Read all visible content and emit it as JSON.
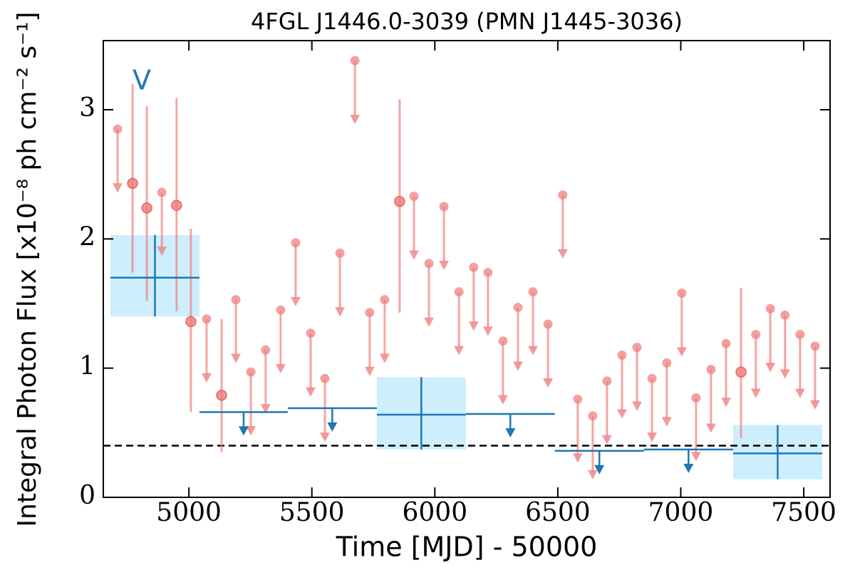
{
  "chart_data": {
    "type": "lightcurve",
    "title": "4FGL J1446.0-3039 (PMN J1445-3036)",
    "x_label": "Time [MJD] - 50000",
    "y_label": "Integral Photon Flux [x10⁻⁸ ph cm⁻² s⁻¹]",
    "annotation": "V",
    "xlim": [
      4652,
      7607
    ],
    "ylim": [
      0,
      3.535
    ],
    "xticks": [
      5000,
      5500,
      6000,
      6500,
      7000,
      7500
    ],
    "yticks": [
      0,
      1,
      2,
      3
    ],
    "reference_line": 0.4,
    "monthly": {
      "color": "#f08080",
      "edge_color": "#d9534f",
      "x": [
        4710,
        4771,
        4829,
        4890,
        4950,
        5008,
        5072,
        5133,
        5191,
        5252,
        5312,
        5373,
        5434,
        5495,
        5553,
        5614,
        5675,
        5735,
        5796,
        5857,
        5915,
        5976,
        6037,
        6098,
        6158,
        6216,
        6277,
        6338,
        6399,
        6460,
        6520,
        6581,
        6642,
        6700,
        6761,
        6822,
        6883,
        6943,
        7004,
        7062,
        7123,
        7184,
        7245,
        7305,
        7364,
        7424,
        7485,
        7546
      ],
      "values": [
        2.85,
        2.43,
        2.24,
        2.36,
        2.26,
        1.36,
        1.38,
        0.79,
        1.53,
        0.97,
        1.14,
        1.45,
        1.97,
        1.27,
        0.92,
        1.89,
        3.38,
        1.43,
        1.53,
        2.29,
        2.33,
        1.81,
        2.25,
        1.59,
        1.78,
        1.74,
        1.21,
        1.47,
        1.59,
        1.34,
        2.34,
        0.76,
        0.63,
        0.9,
        1.1,
        1.16,
        0.92,
        1.04,
        1.58,
        0.77,
        0.99,
        1.19,
        0.97,
        1.26,
        1.46,
        1.41,
        1.26,
        1.17
      ],
      "upper_limit": [
        true,
        false,
        false,
        true,
        false,
        false,
        true,
        false,
        true,
        true,
        true,
        true,
        true,
        true,
        true,
        true,
        true,
        true,
        true,
        false,
        true,
        true,
        true,
        true,
        true,
        true,
        true,
        true,
        true,
        true,
        true,
        true,
        true,
        true,
        true,
        true,
        true,
        true,
        true,
        true,
        true,
        true,
        false,
        true,
        true,
        true,
        true,
        true
      ],
      "lower": [
        null,
        1.74,
        1.52,
        null,
        1.44,
        0.66,
        null,
        0.35,
        null,
        null,
        null,
        null,
        null,
        null,
        null,
        null,
        null,
        null,
        null,
        1.43,
        null,
        null,
        null,
        null,
        null,
        null,
        null,
        null,
        null,
        null,
        null,
        null,
        null,
        null,
        null,
        null,
        null,
        null,
        null,
        null,
        null,
        null,
        0.46,
        null,
        null,
        null,
        null,
        null
      ],
      "upper": [
        null,
        3.2,
        3.03,
        null,
        3.09,
        2.08,
        null,
        1.38,
        null,
        null,
        null,
        null,
        null,
        null,
        null,
        null,
        null,
        null,
        null,
        3.08,
        null,
        null,
        null,
        null,
        null,
        null,
        null,
        null,
        null,
        null,
        null,
        null,
        null,
        null,
        null,
        null,
        null,
        null,
        null,
        null,
        null,
        null,
        1.62,
        null,
        null,
        null,
        null,
        null
      ]
    },
    "yearly": {
      "color": "#1f77b4",
      "band_color": "#cdeefc",
      "bins": [
        4681,
        5043,
        5402,
        5764,
        6126,
        6488,
        6850,
        7213,
        7575
      ],
      "values": [
        1.7,
        0.66,
        0.69,
        0.64,
        0.645,
        0.36,
        0.37,
        0.34
      ],
      "upper_limit": [
        false,
        true,
        true,
        false,
        true,
        true,
        true,
        false
      ],
      "lower": [
        1.4,
        null,
        null,
        0.37,
        null,
        null,
        null,
        0.14
      ],
      "upper": [
        2.03,
        null,
        null,
        0.93,
        null,
        null,
        null,
        0.56
      ]
    }
  }
}
